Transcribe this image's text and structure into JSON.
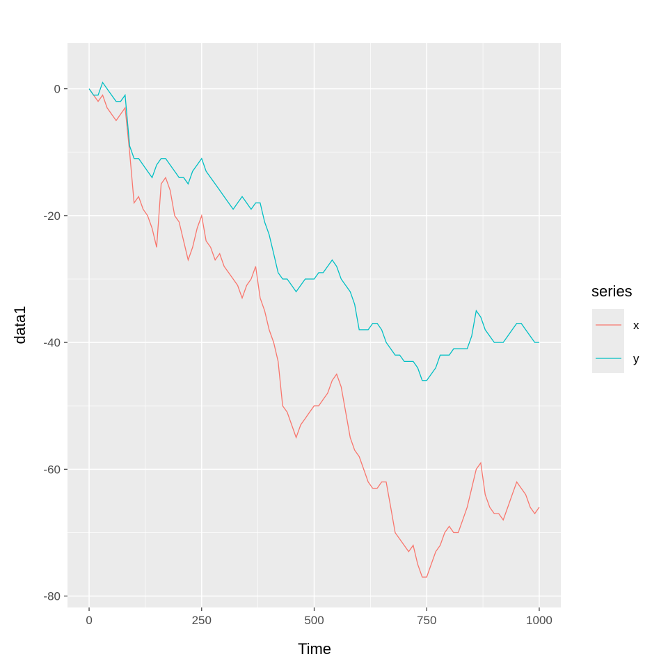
{
  "chart_data": {
    "type": "line",
    "title": "",
    "xlabel": "Time",
    "ylabel": "data1",
    "xlim": [
      -48,
      1048
    ],
    "ylim": [
      -81.8,
      7.2
    ],
    "x_ticks": [
      0,
      250,
      500,
      750,
      1000
    ],
    "x_tick_labels": [
      "0",
      "250",
      "500",
      "750",
      "1000"
    ],
    "y_ticks": [
      0,
      -20,
      -40,
      -60,
      -80
    ],
    "y_tick_labels": [
      "0",
      "-20",
      "-40",
      "-60",
      "-80"
    ],
    "grid": true,
    "legend": {
      "title": "series",
      "placement": "right",
      "entries": [
        "x",
        "y"
      ]
    },
    "series": [
      {
        "name": "x",
        "color": "#F8766D",
        "x": [
          0,
          10,
          20,
          30,
          40,
          50,
          60,
          70,
          80,
          90,
          100,
          110,
          120,
          130,
          140,
          150,
          160,
          170,
          180,
          190,
          200,
          210,
          220,
          230,
          240,
          250,
          260,
          270,
          280,
          290,
          300,
          310,
          320,
          330,
          340,
          350,
          360,
          370,
          380,
          390,
          400,
          410,
          420,
          430,
          440,
          450,
          460,
          470,
          480,
          490,
          500,
          510,
          520,
          530,
          540,
          550,
          560,
          570,
          580,
          590,
          600,
          610,
          620,
          630,
          640,
          650,
          660,
          670,
          680,
          690,
          700,
          710,
          720,
          730,
          740,
          750,
          760,
          770,
          780,
          790,
          800,
          810,
          820,
          830,
          840,
          850,
          860,
          870,
          880,
          890,
          900,
          910,
          920,
          930,
          940,
          950,
          960,
          970,
          980,
          990,
          1000
        ],
        "y": [
          0,
          -1,
          -2,
          -1,
          -3,
          -4,
          -5,
          -4,
          -3,
          -10,
          -18,
          -17,
          -19,
          -20,
          -22,
          -25,
          -15,
          -14,
          -16,
          -20,
          -21,
          -24,
          -27,
          -25,
          -22,
          -20,
          -24,
          -25,
          -27,
          -26,
          -28,
          -29,
          -30,
          -31,
          -33,
          -31,
          -30,
          -28,
          -33,
          -35,
          -38,
          -40,
          -43,
          -50,
          -51,
          -53,
          -55,
          -53,
          -52,
          -51,
          -50,
          -50,
          -49,
          -48,
          -46,
          -45,
          -47,
          -51,
          -55,
          -57,
          -58,
          -60,
          -62,
          -63,
          -63,
          -62,
          -62,
          -66,
          -70,
          -71,
          -72,
          -73,
          -72,
          -75,
          -77,
          -77,
          -75,
          -73,
          -72,
          -70,
          -69,
          -70,
          -70,
          -68,
          -66,
          -63,
          -60,
          -59,
          -64,
          -66,
          -67,
          -67,
          -68,
          -66,
          -64,
          -62,
          -63,
          -64,
          -66,
          -67,
          -66
        ]
      },
      {
        "name": "y",
        "color": "#00BFC4",
        "x": [
          0,
          10,
          20,
          30,
          40,
          50,
          60,
          70,
          80,
          90,
          100,
          110,
          120,
          130,
          140,
          150,
          160,
          170,
          180,
          190,
          200,
          210,
          220,
          230,
          240,
          250,
          260,
          270,
          280,
          290,
          300,
          310,
          320,
          330,
          340,
          350,
          360,
          370,
          380,
          390,
          400,
          410,
          420,
          430,
          440,
          450,
          460,
          470,
          480,
          490,
          500,
          510,
          520,
          530,
          540,
          550,
          560,
          570,
          580,
          590,
          600,
          610,
          620,
          630,
          640,
          650,
          660,
          670,
          680,
          690,
          700,
          710,
          720,
          730,
          740,
          750,
          760,
          770,
          780,
          790,
          800,
          810,
          820,
          830,
          840,
          850,
          860,
          870,
          880,
          890,
          900,
          910,
          920,
          930,
          940,
          950,
          960,
          970,
          980,
          990,
          1000
        ],
        "y": [
          0,
          -1,
          -1,
          1,
          0,
          -1,
          -2,
          -2,
          -1,
          -9,
          -11,
          -11,
          -12,
          -13,
          -14,
          -12,
          -11,
          -11,
          -12,
          -13,
          -14,
          -14,
          -15,
          -13,
          -12,
          -11,
          -13,
          -14,
          -15,
          -16,
          -17,
          -18,
          -19,
          -18,
          -17,
          -18,
          -19,
          -18,
          -18,
          -21,
          -23,
          -26,
          -29,
          -30,
          -30,
          -31,
          -32,
          -31,
          -30,
          -30,
          -30,
          -29,
          -29,
          -28,
          -27,
          -28,
          -30,
          -31,
          -32,
          -34,
          -38,
          -38,
          -38,
          -37,
          -37,
          -38,
          -40,
          -41,
          -42,
          -42,
          -43,
          -43,
          -43,
          -44,
          -46,
          -46,
          -45,
          -44,
          -42,
          -42,
          -42,
          -41,
          -41,
          -41,
          -41,
          -39,
          -35,
          -36,
          -38,
          -39,
          -40,
          -40,
          -40,
          -39,
          -38,
          -37,
          -37,
          -38,
          -39,
          -40,
          -40
        ]
      }
    ]
  }
}
